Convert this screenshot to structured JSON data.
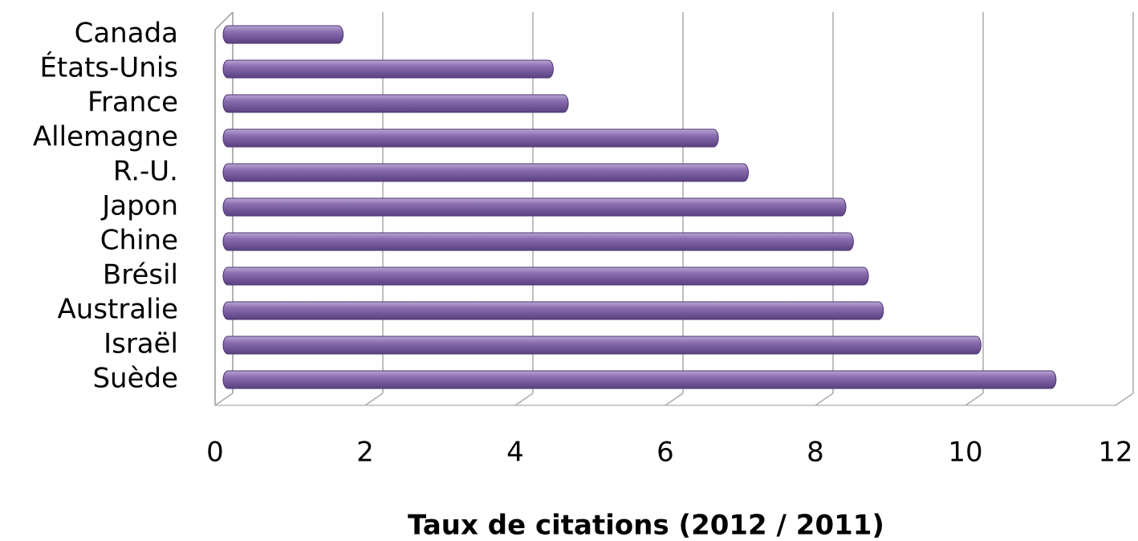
{
  "chart_data": {
    "type": "bar",
    "orientation": "horizontal",
    "categories": [
      "Canada",
      "États-Unis",
      "France",
      "Allemagne",
      "R.-U.",
      "Japon",
      "Chine",
      "Brésil",
      "Australie",
      "Israël",
      "Suède"
    ],
    "values": [
      1.6,
      4.4,
      4.6,
      6.6,
      7.0,
      8.3,
      8.4,
      8.6,
      8.8,
      10.1,
      11.1
    ],
    "color": "#8064a2",
    "x_label": "Taux de citations (2012 / 2011)",
    "xlim": [
      0,
      12
    ],
    "xticks": [
      0,
      2,
      4,
      6,
      8,
      10,
      12
    ],
    "grid": true
  }
}
